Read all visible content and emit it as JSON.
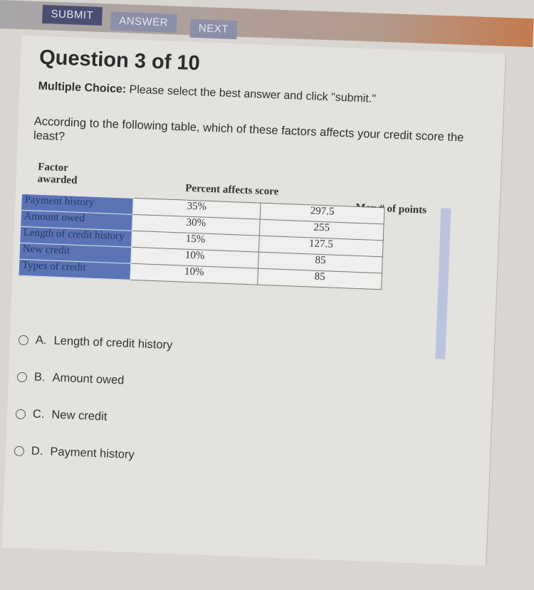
{
  "toolbar": {
    "submit_label": "SUBMIT",
    "answer_label": "ANSWER",
    "next_label": "NEXT"
  },
  "question": {
    "title": "Question 3 of 10",
    "instruction_bold": "Multiple Choice:",
    "instruction": " Please select the best answer and click \"submit.\"",
    "text": "According to the following table, which of these factors affects your credit score the least?"
  },
  "table": {
    "headers": [
      "Factor awarded",
      "Percent affects score",
      "Max # of points"
    ],
    "rows": [
      {
        "factor": "Payment history",
        "percent": "35%",
        "points": "297.5"
      },
      {
        "factor": "Amount owed",
        "percent": "30%",
        "points": "255"
      },
      {
        "factor": "Length of credit history",
        "percent": "15%",
        "points": "127.5"
      },
      {
        "factor": "New credit",
        "percent": "10%",
        "points": "85"
      },
      {
        "factor": "Types of credit",
        "percent": "10%",
        "points": "85"
      }
    ]
  },
  "options": [
    {
      "letter": "A.",
      "label": "Length of credit history"
    },
    {
      "letter": "B.",
      "label": "Amount owed"
    },
    {
      "letter": "C.",
      "label": "New credit"
    },
    {
      "letter": "D.",
      "label": "Payment history"
    }
  ],
  "colors": {
    "factor_cell": "#5b74b5",
    "button": "#4a4e73"
  }
}
